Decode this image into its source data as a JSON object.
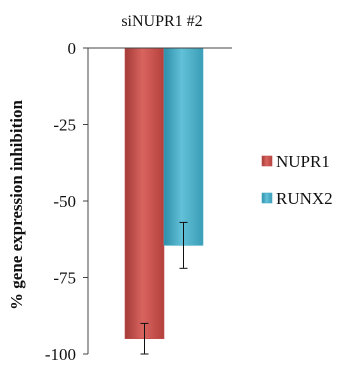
{
  "chart_data": {
    "type": "bar",
    "title": "siNUPR1 #2",
    "xlabel": "",
    "ylabel": "% gene expression inhibition",
    "ylim": [
      -100,
      0
    ],
    "yticks": [
      0,
      -25,
      -50,
      -75,
      -100
    ],
    "ytick_labels": [
      "0",
      "-25",
      "-50",
      "-75",
      "-100"
    ],
    "grid": false,
    "legend_position": "right",
    "series": [
      {
        "name": "NUPR1",
        "value": -95,
        "error": 5,
        "color": "#c0504d"
      },
      {
        "name": "RUNX2",
        "value": -64.5,
        "error": 7.5,
        "color": "#4bacc6"
      }
    ]
  }
}
